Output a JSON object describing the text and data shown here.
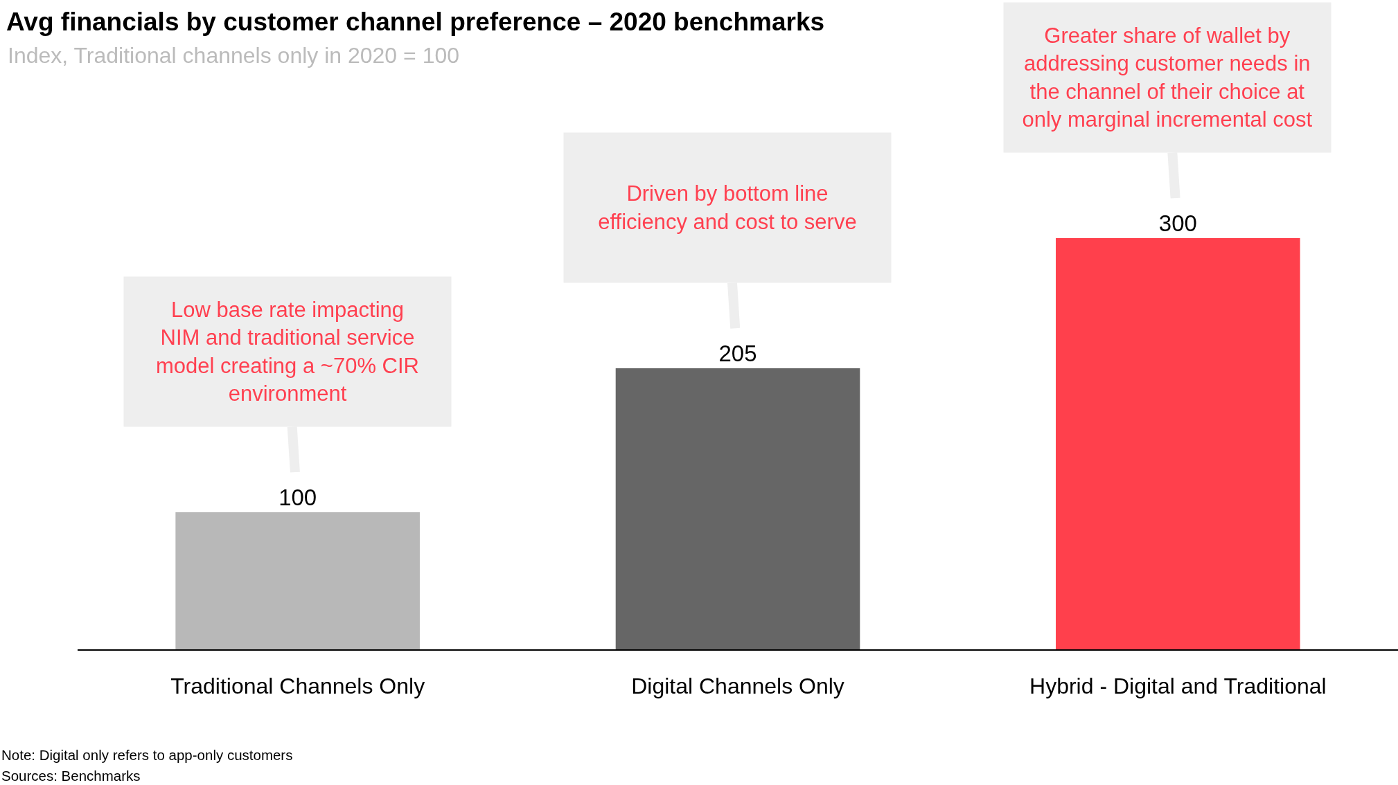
{
  "chart_data": {
    "type": "bar",
    "title": "Avg financials by customer channel preference – 2020 benchmarks",
    "subtitle": "Index, Traditional channels only in 2020 = 100",
    "categories": [
      "Traditional Channels Only",
      "Digital Channels Only",
      "Hybrid - Digital and Traditional"
    ],
    "values": [
      100,
      205,
      300
    ],
    "colors": [
      "#b8b8b8",
      "#666666",
      "#ff404c"
    ],
    "ylim": [
      0,
      300
    ],
    "data_labels": true,
    "annotations": [
      "Low base rate impacting\nNIM and traditional service\nmodel creating a ~70% CIR\nenvironment",
      "Driven by bottom line\nefficiency and cost to serve",
      "Greater share of wallet by\naddressing customer needs in\nthe channel of their choice at\nonly marginal incremental cost",
      "Note: Digital only refers to app-only customers",
      "Sources: Benchmarks"
    ]
  }
}
